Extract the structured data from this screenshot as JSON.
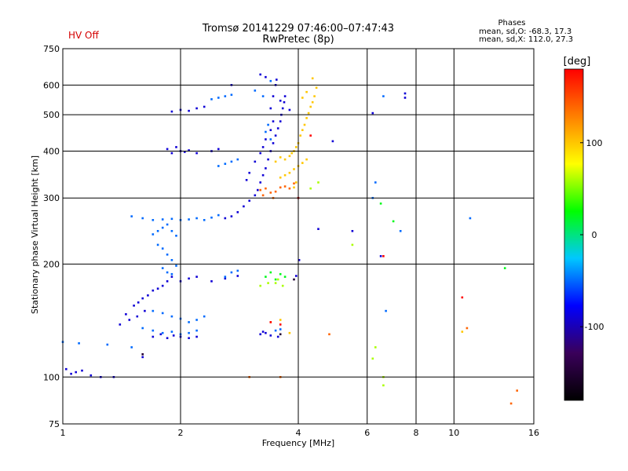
{
  "header": {
    "status": "HV Off",
    "title_line1": "Tromsø 20141229 07:46:00–07:47:43",
    "title_line2": "RwPretec (8p)",
    "stats_title": "Phases",
    "stats_line1": "mean, sd,O: -68.3, 17.3",
    "stats_line2": "mean, sd,X: 112.0, 27.3"
  },
  "colors": {
    "status": "#d40000",
    "grid": "#000000",
    "scale": [
      "#000000",
      "#3a005a",
      "#0000ff",
      "#00c8ff",
      "#00ff00",
      "#ffff00",
      "#ff8000",
      "#ff0000"
    ]
  },
  "chart_data": {
    "type": "scatter",
    "xlabel": "Frequency [MHz]",
    "ylabel": "Stationary phase Virtual Height [km]",
    "xscale": "log",
    "yscale": "log",
    "xlim": [
      1,
      16
    ],
    "ylim": [
      75,
      750
    ],
    "grid": true,
    "xticks": [
      1,
      2,
      4,
      6,
      8,
      10,
      16
    ],
    "xtick_labels": [
      "1",
      "2",
      "4",
      "6",
      "8",
      "10",
      "16"
    ],
    "yticks": [
      75,
      100,
      200,
      300,
      400,
      500,
      600,
      750
    ],
    "ytick_labels": [
      "75",
      "100",
      "200",
      "300",
      "400",
      "500",
      "600",
      "750"
    ],
    "colorbar": {
      "label": "[deg]",
      "range": [
        -180,
        180
      ],
      "ticks": [
        100,
        0,
        -100
      ],
      "tick_labels": [
        "100",
        "0",
        "-100"
      ]
    },
    "series": [
      {
        "phase": -90,
        "points": [
          [
            1.02,
            105
          ],
          [
            1.05,
            102
          ],
          [
            1.08,
            103
          ],
          [
            1.12,
            104
          ],
          [
            1.18,
            101
          ],
          [
            1.25,
            100
          ],
          [
            1.35,
            100
          ],
          [
            1.6,
            113
          ],
          [
            1.45,
            147
          ],
          [
            1.52,
            155
          ],
          [
            1.56,
            158
          ],
          [
            1.6,
            162
          ],
          [
            1.65,
            165
          ],
          [
            1.7,
            170
          ],
          [
            1.75,
            172
          ],
          [
            1.8,
            175
          ],
          [
            1.85,
            180
          ],
          [
            1.9,
            185
          ],
          [
            1.4,
            138
          ],
          [
            1.48,
            142
          ],
          [
            1.55,
            145
          ],
          [
            1.62,
            150
          ],
          [
            1.7,
            128
          ],
          [
            1.78,
            130
          ],
          [
            1.85,
            127
          ],
          [
            1.92,
            129
          ],
          [
            2.0,
            128
          ],
          [
            2.1,
            127
          ],
          [
            2.2,
            128
          ],
          [
            1.85,
            405
          ],
          [
            1.9,
            395
          ],
          [
            1.95,
            410
          ],
          [
            2.0,
            400
          ],
          [
            2.05,
            398
          ],
          [
            2.1,
            402
          ],
          [
            2.2,
            395
          ],
          [
            2.4,
            400
          ],
          [
            2.5,
            405
          ],
          [
            1.9,
            510
          ],
          [
            2.0,
            515
          ],
          [
            2.1,
            512
          ],
          [
            2.2,
            520
          ],
          [
            2.3,
            525
          ],
          [
            2.6,
            265
          ],
          [
            2.7,
            268
          ],
          [
            2.8,
            275
          ],
          [
            2.9,
            285
          ],
          [
            3.0,
            295
          ],
          [
            3.1,
            305
          ],
          [
            3.15,
            315
          ],
          [
            3.2,
            330
          ],
          [
            3.25,
            345
          ],
          [
            3.3,
            360
          ],
          [
            3.35,
            380
          ],
          [
            3.4,
            400
          ],
          [
            3.45,
            420
          ],
          [
            3.5,
            440
          ],
          [
            3.55,
            460
          ],
          [
            3.6,
            480
          ],
          [
            3.62,
            500
          ],
          [
            3.65,
            520
          ],
          [
            3.68,
            540
          ],
          [
            3.7,
            560
          ],
          [
            3.4,
            520
          ],
          [
            3.45,
            560
          ],
          [
            3.5,
            600
          ],
          [
            3.52,
            620
          ],
          [
            3.45,
            480
          ],
          [
            3.4,
            455
          ],
          [
            3.3,
            430
          ],
          [
            3.25,
            410
          ],
          [
            3.2,
            395
          ],
          [
            3.1,
            375
          ],
          [
            3.0,
            350
          ],
          [
            2.95,
            335
          ],
          [
            3.2,
            130
          ],
          [
            3.25,
            132
          ],
          [
            3.3,
            131
          ],
          [
            3.4,
            129
          ],
          [
            3.55,
            128
          ],
          [
            2.0,
            180
          ],
          [
            2.1,
            183
          ],
          [
            2.2,
            185
          ],
          [
            2.4,
            180
          ],
          [
            2.6,
            183
          ],
          [
            2.8,
            186
          ],
          [
            2.7,
            600
          ],
          [
            3.2,
            640
          ],
          [
            3.3,
            630
          ],
          [
            4.5,
            248
          ],
          [
            5.5,
            245
          ],
          [
            6.5,
            210
          ],
          [
            7.5,
            570
          ],
          [
            7.5,
            555
          ],
          [
            6.2,
            505
          ],
          [
            4.9,
            425
          ],
          [
            3.8,
            515
          ],
          [
            3.6,
            545
          ],
          [
            4.02,
            205
          ],
          [
            3.95,
            186
          ]
        ]
      },
      {
        "phase": -50,
        "points": [
          [
            1.5,
            268
          ],
          [
            1.6,
            265
          ],
          [
            1.7,
            262
          ],
          [
            1.8,
            263
          ],
          [
            1.9,
            264
          ],
          [
            2.0,
            262
          ],
          [
            2.1,
            263
          ],
          [
            2.2,
            265
          ],
          [
            2.3,
            262
          ],
          [
            2.4,
            266
          ],
          [
            2.5,
            270
          ],
          [
            1.7,
            240
          ],
          [
            1.75,
            245
          ],
          [
            1.8,
            250
          ],
          [
            1.85,
            255
          ],
          [
            1.9,
            245
          ],
          [
            1.95,
            238
          ],
          [
            1.75,
            225
          ],
          [
            1.8,
            220
          ],
          [
            1.85,
            212
          ],
          [
            1.9,
            205
          ],
          [
            1.95,
            198
          ],
          [
            1.8,
            195
          ],
          [
            1.85,
            190
          ],
          [
            1.9,
            188
          ],
          [
            1.7,
            150
          ],
          [
            1.8,
            148
          ],
          [
            1.9,
            145
          ],
          [
            2.0,
            143
          ],
          [
            2.1,
            140
          ],
          [
            2.2,
            142
          ],
          [
            2.3,
            145
          ],
          [
            1.6,
            135
          ],
          [
            1.7,
            133
          ],
          [
            1.8,
            131
          ],
          [
            1.9,
            132
          ],
          [
            2.0,
            130
          ],
          [
            2.1,
            131
          ],
          [
            2.2,
            133
          ],
          [
            2.4,
            550
          ],
          [
            2.5,
            555
          ],
          [
            2.6,
            560
          ],
          [
            2.7,
            565
          ],
          [
            2.5,
            365
          ],
          [
            2.6,
            370
          ],
          [
            2.7,
            375
          ],
          [
            2.8,
            380
          ],
          [
            2.6,
            185
          ],
          [
            2.7,
            190
          ],
          [
            2.8,
            192
          ],
          [
            3.5,
            133
          ],
          [
            3.6,
            134
          ],
          [
            1.0,
            124
          ],
          [
            1.1,
            123
          ],
          [
            1.3,
            122
          ],
          [
            1.5,
            120
          ],
          [
            3.25,
            560
          ],
          [
            3.4,
            615
          ],
          [
            3.1,
            580
          ],
          [
            3.3,
            450
          ],
          [
            3.35,
            470
          ],
          [
            3.4,
            430
          ],
          [
            6.2,
            300
          ],
          [
            6.3,
            330
          ],
          [
            6.6,
            560
          ],
          [
            6.7,
            150
          ],
          [
            7.3,
            245
          ],
          [
            11.0,
            265
          ]
        ]
      },
      {
        "phase": 100,
        "points": [
          [
            3.5,
            375
          ],
          [
            3.6,
            385
          ],
          [
            3.7,
            380
          ],
          [
            3.8,
            388
          ],
          [
            3.85,
            395
          ],
          [
            3.9,
            400
          ],
          [
            3.95,
            410
          ],
          [
            4.0,
            420
          ],
          [
            4.05,
            440
          ],
          [
            4.1,
            455
          ],
          [
            4.15,
            470
          ],
          [
            4.2,
            490
          ],
          [
            4.25,
            505
          ],
          [
            4.3,
            525
          ],
          [
            4.35,
            540
          ],
          [
            4.4,
            560
          ],
          [
            4.45,
            590
          ],
          [
            3.6,
            340
          ],
          [
            3.7,
            345
          ],
          [
            3.8,
            350
          ],
          [
            3.9,
            358
          ],
          [
            4.0,
            365
          ],
          [
            4.1,
            372
          ],
          [
            4.2,
            380
          ],
          [
            4.1,
            555
          ],
          [
            4.2,
            575
          ],
          [
            4.35,
            625
          ],
          [
            3.9,
            320
          ],
          [
            3.95,
            330
          ],
          [
            3.4,
            140
          ],
          [
            3.6,
            142
          ],
          [
            3.8,
            131
          ],
          [
            10.5,
            132
          ]
        ]
      },
      {
        "phase": 140,
        "points": [
          [
            3.2,
            315
          ],
          [
            3.3,
            318
          ],
          [
            3.4,
            310
          ],
          [
            3.5,
            312
          ],
          [
            3.6,
            320
          ],
          [
            3.7,
            322
          ],
          [
            3.8,
            318
          ],
          [
            3.9,
            328
          ],
          [
            3.25,
            305
          ],
          [
            3.45,
            300
          ],
          [
            3.0,
            100
          ],
          [
            3.6,
            100
          ],
          [
            10.8,
            135
          ],
          [
            14.0,
            85
          ],
          [
            14.5,
            92
          ],
          [
            4.8,
            130
          ]
        ]
      },
      {
        "phase": 20,
        "points": [
          [
            3.3,
            185
          ],
          [
            3.4,
            190
          ],
          [
            3.6,
            188
          ],
          [
            3.7,
            185
          ],
          [
            3.5,
            182
          ],
          [
            6.5,
            290
          ],
          [
            7.0,
            260
          ],
          [
            13.5,
            195
          ]
        ]
      },
      {
        "phase": 60,
        "points": [
          [
            3.2,
            175
          ],
          [
            3.35,
            178
          ],
          [
            3.5,
            178
          ],
          [
            3.55,
            182
          ],
          [
            3.65,
            175
          ],
          [
            4.3,
            318
          ],
          [
            4.5,
            330
          ],
          [
            6.3,
            120
          ],
          [
            6.2,
            112
          ],
          [
            5.5,
            225
          ],
          [
            6.6,
            100
          ],
          [
            6.6,
            95
          ]
        ]
      },
      {
        "phase": 180,
        "points": [
          [
            3.4,
            140
          ],
          [
            3.6,
            138
          ],
          [
            4.3,
            440
          ],
          [
            4.0,
            300
          ],
          [
            6.6,
            210
          ],
          [
            10.5,
            163
          ]
        ]
      },
      {
        "phase": -150,
        "points": [
          [
            1.6,
            115
          ],
          [
            3.6,
            130
          ],
          [
            3.9,
            182
          ]
        ]
      }
    ]
  }
}
